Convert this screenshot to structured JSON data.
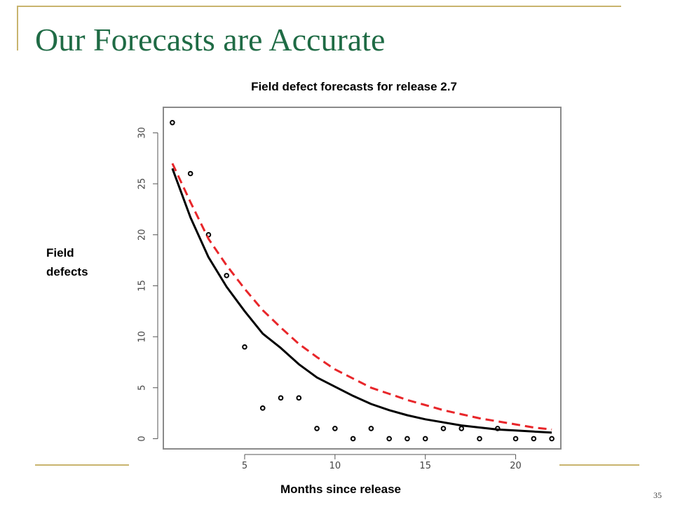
{
  "slide": {
    "title": "Our Forecasts are Accurate",
    "page_number": "35",
    "accent_color": "#c8b46e",
    "title_color": "#1f6b45"
  },
  "chart_data": {
    "type": "scatter",
    "title": "Field defect forecasts for release 2.7",
    "xlabel": "Months since release",
    "ylabel": "Field defects",
    "xlim": [
      0.5,
      22.5
    ],
    "ylim": [
      -1,
      32.5
    ],
    "x_ticks": [
      5,
      10,
      15,
      20
    ],
    "y_ticks": [
      0,
      5,
      10,
      15,
      20,
      25,
      30
    ],
    "grid": false,
    "series": [
      {
        "kind": "points",
        "color": "#000000",
        "x": [
          1,
          2,
          3,
          4,
          5,
          6,
          7,
          8,
          9,
          10,
          11,
          12,
          13,
          14,
          15,
          16,
          17,
          18,
          19,
          20,
          21,
          22
        ],
        "y": [
          31,
          26,
          20,
          16,
          9,
          3,
          4,
          4,
          1,
          1,
          0,
          1,
          0,
          0,
          0,
          1,
          1,
          0,
          1,
          0,
          0,
          0
        ]
      },
      {
        "kind": "solid-line",
        "color": "#000000",
        "x": [
          1,
          2,
          3,
          4,
          5,
          6,
          7,
          8,
          9,
          10,
          11,
          12,
          13,
          14,
          15,
          16,
          17,
          18,
          19,
          20,
          21,
          22
        ],
        "y": [
          26.5,
          21.7,
          17.8,
          14.9,
          12.5,
          10.3,
          8.9,
          7.3,
          6.0,
          5.1,
          4.2,
          3.4,
          2.8,
          2.3,
          1.9,
          1.6,
          1.3,
          1.1,
          0.9,
          0.8,
          0.7,
          0.6
        ]
      },
      {
        "kind": "dashed-line",
        "color": "#e8262a",
        "x": [
          1,
          2,
          3,
          4,
          5,
          6,
          7,
          8,
          9,
          10,
          11,
          12,
          13,
          14,
          15,
          16,
          17,
          18,
          19,
          20,
          21,
          22
        ],
        "y": [
          27.0,
          23.2,
          19.6,
          17.0,
          14.7,
          12.6,
          10.9,
          9.3,
          8.0,
          6.8,
          5.9,
          5.0,
          4.4,
          3.8,
          3.3,
          2.8,
          2.4,
          2.0,
          1.7,
          1.4,
          1.1,
          0.9
        ]
      }
    ]
  }
}
